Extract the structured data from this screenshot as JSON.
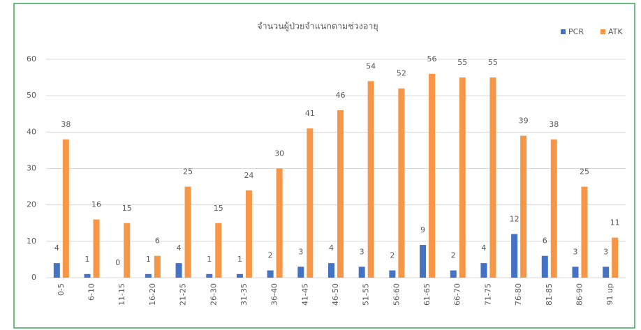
{
  "chart_data": {
    "type": "bar",
    "title": "จำนวนผู้ป่วยจำแนกตามช่วงอายุ",
    "categories": [
      "0-5",
      "6-10",
      "11-15",
      "16-20",
      "21-25",
      "26-30",
      "31-35",
      "36-40",
      "41-45",
      "46-50",
      "51-55",
      "56-60",
      "61-65",
      "66-70",
      "71-75",
      "76-80",
      "81-85",
      "86-90",
      "91 up"
    ],
    "series": [
      {
        "name": "PCR",
        "color": "#4472c4",
        "values": [
          4,
          1,
          0,
          1,
          4,
          1,
          1,
          2,
          3,
          4,
          3,
          2,
          9,
          2,
          4,
          12,
          6,
          3,
          3
        ]
      },
      {
        "name": "ATK",
        "color": "#f79646",
        "values": [
          38,
          16,
          15,
          6,
          25,
          15,
          24,
          30,
          41,
          46,
          54,
          52,
          56,
          55,
          55,
          39,
          38,
          25,
          11
        ]
      }
    ],
    "ylim": [
      0,
      60
    ],
    "yticks": [
      0,
      10,
      20,
      30,
      40,
      50,
      60
    ],
    "grid": true,
    "legend": "top-right"
  }
}
